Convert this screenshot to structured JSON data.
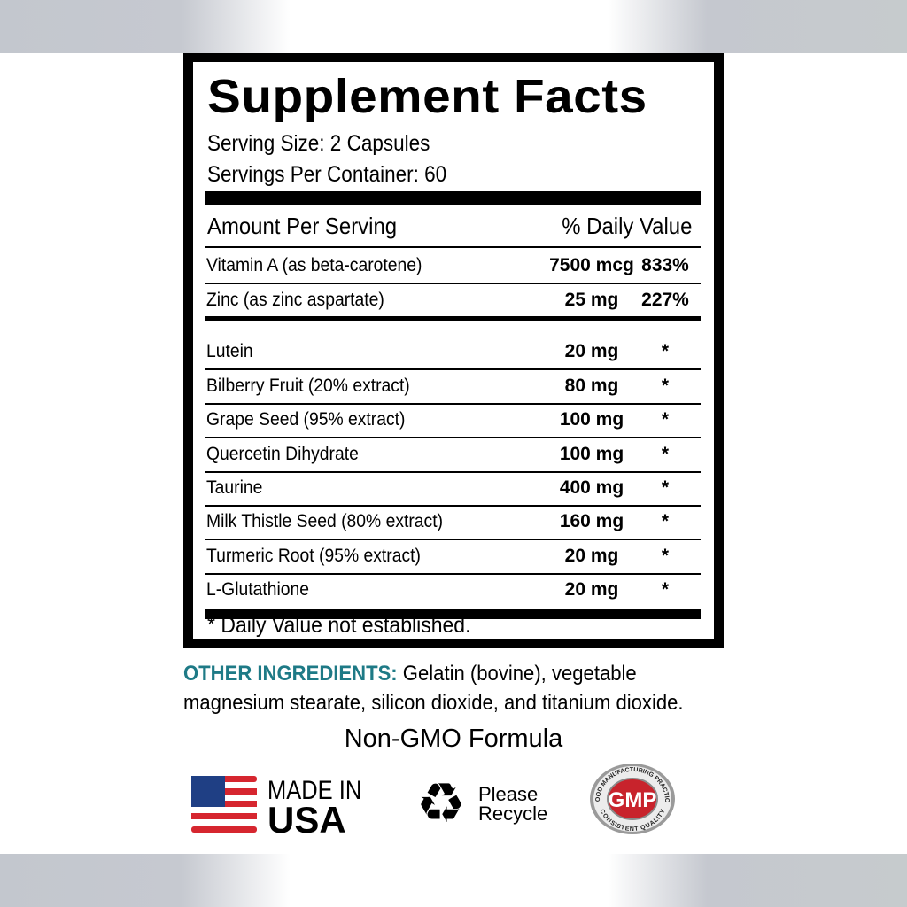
{
  "title": "Supplement Facts",
  "serving_size": "Serving Size: 2 Capsules",
  "servings_per_container": "Servings Per Container: 60",
  "header": {
    "amount": "Amount Per Serving",
    "dv": "% Daily Value"
  },
  "rows": [
    {
      "name": "Vitamin A (as beta-carotene)",
      "amount": "7500 mcg",
      "dv": "833%"
    },
    {
      "name": "Zinc (as zinc aspartate)",
      "amount": "25 mg",
      "dv": "227%"
    },
    {
      "name": "Lutein",
      "amount": "20 mg",
      "dv": "*"
    },
    {
      "name": "Bilberry Fruit (20% extract)",
      "amount": "80 mg",
      "dv": "*"
    },
    {
      "name": "Grape Seed (95% extract)",
      "amount": "100 mg",
      "dv": "*"
    },
    {
      "name": "Quercetin Dihydrate",
      "amount": "100 mg",
      "dv": "*"
    },
    {
      "name": "Taurine",
      "amount": "400 mg",
      "dv": "*"
    },
    {
      "name": "Milk Thistle Seed (80% extract)",
      "amount": "160 mg",
      "dv": "*"
    },
    {
      "name": "Turmeric Root (95% extract)",
      "amount": "20 mg",
      "dv": "*"
    },
    {
      "name": "L-Glutathione",
      "amount": "20 mg",
      "dv": "*"
    }
  ],
  "footnote": "* Daily Value not established.",
  "other": {
    "label": "OTHER INGREDIENTS:",
    "line1": " Gelatin (bovine), vegetable",
    "line2": "magnesium stearate, silicon dioxide, and titanium dioxide."
  },
  "non_gmo": "Non-GMO Formula",
  "badges": {
    "usa_line1": "MADE IN",
    "usa_line2": "USA",
    "recycle_line1": "Please",
    "recycle_line2": "Recycle",
    "gmp": "GMP",
    "gmp_top": "GOOD MANUFACTURING PRACTICE",
    "gmp_bottom": "CONSISTENT QUALITY"
  },
  "colors": {
    "accent": "#1e7a86",
    "gmp_red": "#c8232c"
  }
}
